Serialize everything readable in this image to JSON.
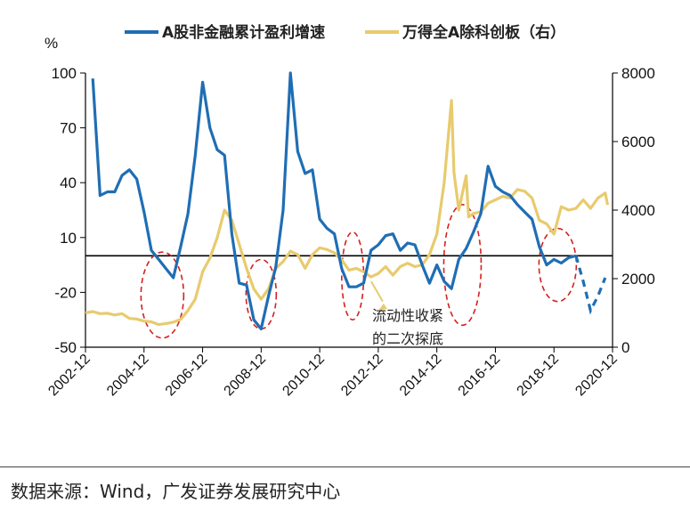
{
  "chart_data": {
    "type": "line",
    "left_unit": "%",
    "x_ticks": [
      "2002-12",
      "2004-12",
      "2006-12",
      "2008-12",
      "2010-12",
      "2012-12",
      "2014-12",
      "2016-12",
      "2018-12",
      "2020-12"
    ],
    "y_left": {
      "range": [
        -50,
        100
      ],
      "ticks": [
        "100",
        "70",
        "40",
        "10",
        "-20",
        "-50"
      ]
    },
    "y_right": {
      "range": [
        0,
        8000
      ],
      "ticks": [
        "8000",
        "6000",
        "4000",
        "2000",
        "0"
      ]
    },
    "legend_position": "top",
    "series": [
      {
        "name": "A股非金融累计盈利增速",
        "color": "#1f6eb4",
        "axis": "left",
        "points": [
          [
            "2003-03",
            97
          ],
          [
            "2003-06",
            33
          ],
          [
            "2003-09",
            35
          ],
          [
            "2003-12",
            35
          ],
          [
            "2004-03",
            44
          ],
          [
            "2004-06",
            47
          ],
          [
            "2004-09",
            42
          ],
          [
            "2004-12",
            24
          ],
          [
            "2005-03",
            3
          ],
          [
            "2005-06",
            -2
          ],
          [
            "2005-09",
            -7
          ],
          [
            "2005-12",
            -12
          ],
          [
            "2006-03",
            5
          ],
          [
            "2006-06",
            23
          ],
          [
            "2006-09",
            55
          ],
          [
            "2006-12",
            95
          ],
          [
            "2007-03",
            70
          ],
          [
            "2007-06",
            58
          ],
          [
            "2007-09",
            55
          ],
          [
            "2007-12",
            12
          ],
          [
            "2008-03",
            -15
          ],
          [
            "2008-06",
            -16
          ],
          [
            "2008-09",
            -35
          ],
          [
            "2008-12",
            -40
          ],
          [
            "2009-03",
            -22
          ],
          [
            "2009-06",
            -6
          ],
          [
            "2009-09",
            25
          ],
          [
            "2009-12",
            100
          ],
          [
            "2010-03",
            57
          ],
          [
            "2010-06",
            45
          ],
          [
            "2010-09",
            47
          ],
          [
            "2010-12",
            20
          ],
          [
            "2011-03",
            15
          ],
          [
            "2011-06",
            12
          ],
          [
            "2011-09",
            -7
          ],
          [
            "2011-12",
            -17
          ],
          [
            "2012-03",
            -17
          ],
          [
            "2012-06",
            -15
          ],
          [
            "2012-09",
            3
          ],
          [
            "2012-12",
            6
          ],
          [
            "2013-03",
            11
          ],
          [
            "2013-06",
            12
          ],
          [
            "2013-09",
            3
          ],
          [
            "2013-12",
            7
          ],
          [
            "2014-03",
            6
          ],
          [
            "2014-06",
            -5
          ],
          [
            "2014-09",
            -15
          ],
          [
            "2014-12",
            -5
          ],
          [
            "2015-03",
            -14
          ],
          [
            "2015-06",
            -18
          ],
          [
            "2015-09",
            -2
          ],
          [
            "2015-12",
            4
          ],
          [
            "2016-03",
            13
          ],
          [
            "2016-06",
            23
          ],
          [
            "2016-09",
            49
          ],
          [
            "2016-12",
            38
          ],
          [
            "2017-03",
            35
          ],
          [
            "2017-06",
            33
          ],
          [
            "2017-09",
            28
          ],
          [
            "2017-12",
            24
          ],
          [
            "2018-03",
            20
          ],
          [
            "2018-06",
            5
          ],
          [
            "2018-09",
            -5
          ],
          [
            "2018-12",
            -2
          ],
          [
            "2019-03",
            -4
          ],
          [
            "2019-06",
            -1
          ],
          [
            "2019-09",
            0
          ]
        ],
        "dashed_points": [
          [
            "2019-09",
            0
          ],
          [
            "2019-12",
            -14
          ],
          [
            "2020-03",
            -30
          ],
          [
            "2020-06",
            -22
          ],
          [
            "2020-09",
            -12
          ]
        ]
      },
      {
        "name": "万得全A除科创板（右）",
        "color": "#e8cb6e",
        "axis": "right",
        "points": [
          [
            "2002-12",
            1000
          ],
          [
            "2003-03",
            1040
          ],
          [
            "2003-06",
            980
          ],
          [
            "2003-09",
            990
          ],
          [
            "2003-12",
            940
          ],
          [
            "2004-03",
            980
          ],
          [
            "2004-06",
            840
          ],
          [
            "2004-09",
            820
          ],
          [
            "2004-12",
            760
          ],
          [
            "2005-03",
            740
          ],
          [
            "2005-06",
            660
          ],
          [
            "2005-09",
            690
          ],
          [
            "2005-12",
            730
          ],
          [
            "2006-03",
            810
          ],
          [
            "2006-06",
            1070
          ],
          [
            "2006-09",
            1400
          ],
          [
            "2006-12",
            2200
          ],
          [
            "2007-03",
            2600
          ],
          [
            "2007-06",
            3200
          ],
          [
            "2007-09",
            4000
          ],
          [
            "2007-12",
            3700
          ],
          [
            "2008-03",
            3000
          ],
          [
            "2008-06",
            2300
          ],
          [
            "2008-09",
            1700
          ],
          [
            "2008-12",
            1400
          ],
          [
            "2009-03",
            1700
          ],
          [
            "2009-06",
            2300
          ],
          [
            "2009-09",
            2500
          ],
          [
            "2009-12",
            2800
          ],
          [
            "2010-03",
            2700
          ],
          [
            "2010-06",
            2300
          ],
          [
            "2010-09",
            2700
          ],
          [
            "2010-12",
            2900
          ],
          [
            "2011-03",
            2850
          ],
          [
            "2011-06",
            2750
          ],
          [
            "2011-09",
            2550
          ],
          [
            "2011-12",
            2250
          ],
          [
            "2012-03",
            2300
          ],
          [
            "2012-06",
            2200
          ],
          [
            "2012-09",
            2050
          ],
          [
            "2012-12",
            2150
          ],
          [
            "2013-03",
            2350
          ],
          [
            "2013-06",
            2100
          ],
          [
            "2013-09",
            2350
          ],
          [
            "2013-12",
            2450
          ],
          [
            "2014-03",
            2350
          ],
          [
            "2014-06",
            2400
          ],
          [
            "2014-09",
            2700
          ],
          [
            "2014-12",
            3300
          ],
          [
            "2015-03",
            4800
          ],
          [
            "2015-06",
            7200
          ],
          [
            "2015-07",
            5100
          ],
          [
            "2015-09",
            4000
          ],
          [
            "2015-12",
            5000
          ],
          [
            "2016-01",
            3800
          ],
          [
            "2016-03",
            3900
          ],
          [
            "2016-06",
            3950
          ],
          [
            "2016-09",
            4200
          ],
          [
            "2016-12",
            4300
          ],
          [
            "2017-03",
            4400
          ],
          [
            "2017-06",
            4350
          ],
          [
            "2017-09",
            4600
          ],
          [
            "2017-12",
            4550
          ],
          [
            "2018-03",
            4350
          ],
          [
            "2018-06",
            3700
          ],
          [
            "2018-09",
            3600
          ],
          [
            "2018-12",
            3300
          ],
          [
            "2019-03",
            4100
          ],
          [
            "2019-06",
            4000
          ],
          [
            "2019-09",
            4050
          ],
          [
            "2019-12",
            4300
          ],
          [
            "2020-03",
            4050
          ],
          [
            "2020-06",
            4350
          ],
          [
            "2020-09",
            4500
          ],
          [
            "2020-10",
            4150
          ]
        ]
      }
    ],
    "reference_line_left": 0,
    "annotation": {
      "line1": "流动性收紧",
      "line2": "的二次探底",
      "arrow_points_to": "2012-12"
    },
    "highlight_ellipses": [
      "2004-12 to 2006-03",
      "2008-06 to 2009-06",
      "2011-09 to 2012-06",
      "2015-03 to 2016-06",
      "2018-09 to 2019-06"
    ]
  },
  "source": "数据来源：Wind，广发证券发展研究中心"
}
